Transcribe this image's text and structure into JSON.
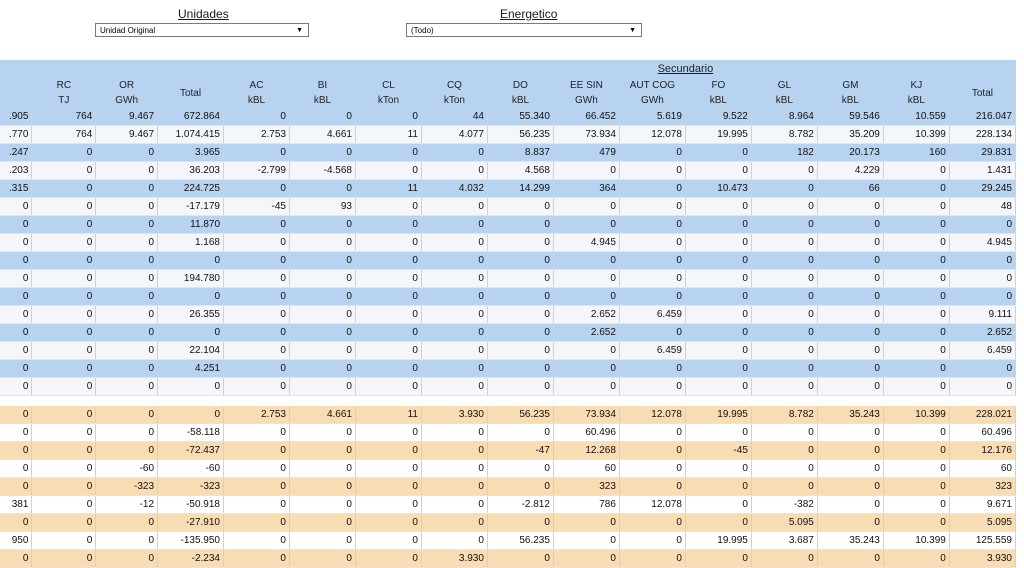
{
  "filters": {
    "unidades": {
      "label": "Unidades",
      "value": "Unidad Original"
    },
    "energetico": {
      "label": "Energetico",
      "value": "(Todo)"
    }
  },
  "table": {
    "group_header": "Secundario",
    "columns": [
      {
        "name": "",
        "unit": ""
      },
      {
        "name": "RC",
        "unit": "TJ"
      },
      {
        "name": "OR",
        "unit": "GWh"
      },
      {
        "name": "Total",
        "unit": ""
      },
      {
        "name": "AC",
        "unit": "kBL"
      },
      {
        "name": "BI",
        "unit": "kBL"
      },
      {
        "name": "CL",
        "unit": "kTon"
      },
      {
        "name": "CQ",
        "unit": "kTon"
      },
      {
        "name": "DO",
        "unit": "kBL"
      },
      {
        "name": "EE SIN",
        "unit": "GWh"
      },
      {
        "name": "AUT COG",
        "unit": "GWh"
      },
      {
        "name": "FO",
        "unit": "kBL"
      },
      {
        "name": "GL",
        "unit": "kBL"
      },
      {
        "name": "GM",
        "unit": "kBL"
      },
      {
        "name": "KJ",
        "unit": "kBL"
      },
      {
        "name": "Total",
        "unit": ""
      }
    ],
    "rows_top": [
      [
        ".905",
        "764",
        "9.467",
        "672.864",
        "0",
        "0",
        "0",
        "44",
        "55.340",
        "66.452",
        "5.619",
        "9.522",
        "8.964",
        "59.546",
        "10.559",
        "216.047"
      ],
      [
        ".770",
        "764",
        "9.467",
        "1.074.415",
        "2.753",
        "4.661",
        "11",
        "4.077",
        "56.235",
        "73.934",
        "12.078",
        "19.995",
        "8.782",
        "35.209",
        "10.399",
        "228.134"
      ],
      [
        ".247",
        "0",
        "0",
        "3.965",
        "0",
        "0",
        "0",
        "0",
        "8.837",
        "479",
        "0",
        "0",
        "182",
        "20.173",
        "160",
        "29.831"
      ],
      [
        ".203",
        "0",
        "0",
        "36.203",
        "-2.799",
        "-4.568",
        "0",
        "0",
        "4.568",
        "0",
        "0",
        "0",
        "0",
        "4.229",
        "0",
        "1.431"
      ],
      [
        ".315",
        "0",
        "0",
        "224.725",
        "0",
        "0",
        "11",
        "4.032",
        "14.299",
        "364",
        "0",
        "10.473",
        "0",
        "66",
        "0",
        "29.245"
      ],
      [
        "0",
        "0",
        "0",
        "-17.179",
        "-45",
        "93",
        "0",
        "0",
        "0",
        "0",
        "0",
        "0",
        "0",
        "0",
        "0",
        "48"
      ],
      [
        "0",
        "0",
        "0",
        "11.870",
        "0",
        "0",
        "0",
        "0",
        "0",
        "0",
        "0",
        "0",
        "0",
        "0",
        "0",
        "0"
      ],
      [
        "0",
        "0",
        "0",
        "1.168",
        "0",
        "0",
        "0",
        "0",
        "0",
        "4.945",
        "0",
        "0",
        "0",
        "0",
        "0",
        "4.945"
      ],
      [
        "0",
        "0",
        "0",
        "0",
        "0",
        "0",
        "0",
        "0",
        "0",
        "0",
        "0",
        "0",
        "0",
        "0",
        "0",
        "0"
      ],
      [
        "0",
        "0",
        "0",
        "194.780",
        "0",
        "0",
        "0",
        "0",
        "0",
        "0",
        "0",
        "0",
        "0",
        "0",
        "0",
        "0"
      ],
      [
        "0",
        "0",
        "0",
        "0",
        "0",
        "0",
        "0",
        "0",
        "0",
        "0",
        "0",
        "0",
        "0",
        "0",
        "0",
        "0"
      ],
      [
        "0",
        "0",
        "0",
        "26.355",
        "0",
        "0",
        "0",
        "0",
        "0",
        "2.652",
        "6.459",
        "0",
        "0",
        "0",
        "0",
        "9.111"
      ],
      [
        "0",
        "0",
        "0",
        "0",
        "0",
        "0",
        "0",
        "0",
        "0",
        "2.652",
        "0",
        "0",
        "0",
        "0",
        "0",
        "2.652"
      ],
      [
        "0",
        "0",
        "0",
        "22.104",
        "0",
        "0",
        "0",
        "0",
        "0",
        "0",
        "6.459",
        "0",
        "0",
        "0",
        "0",
        "6.459"
      ],
      [
        "0",
        "0",
        "0",
        "4.251",
        "0",
        "0",
        "0",
        "0",
        "0",
        "0",
        "0",
        "0",
        "0",
        "0",
        "0",
        "0"
      ],
      [
        "0",
        "0",
        "0",
        "0",
        "0",
        "0",
        "0",
        "0",
        "0",
        "0",
        "0",
        "0",
        "0",
        "0",
        "0",
        "0"
      ]
    ],
    "rows_bottom": [
      [
        "0",
        "0",
        "0",
        "0",
        "2.753",
        "4.661",
        "11",
        "3.930",
        "56.235",
        "73.934",
        "12.078",
        "19.995",
        "8.782",
        "35.243",
        "10.399",
        "228.021"
      ],
      [
        "0",
        "0",
        "0",
        "-58.118",
        "0",
        "0",
        "0",
        "0",
        "0",
        "60.496",
        "0",
        "0",
        "0",
        "0",
        "0",
        "60.496"
      ],
      [
        "0",
        "0",
        "0",
        "-72.437",
        "0",
        "0",
        "0",
        "0",
        "-47",
        "12.268",
        "0",
        "-45",
        "0",
        "0",
        "0",
        "12.176"
      ],
      [
        "0",
        "0",
        "-60",
        "-60",
        "0",
        "0",
        "0",
        "0",
        "0",
        "60",
        "0",
        "0",
        "0",
        "0",
        "0",
        "60"
      ],
      [
        "0",
        "0",
        "-323",
        "-323",
        "0",
        "0",
        "0",
        "0",
        "0",
        "323",
        "0",
        "0",
        "0",
        "0",
        "0",
        "323"
      ],
      [
        "381",
        "0",
        "-12",
        "-50.918",
        "0",
        "0",
        "0",
        "0",
        "-2.812",
        "786",
        "12.078",
        "0",
        "-382",
        "0",
        "0",
        "9.671"
      ],
      [
        "0",
        "0",
        "0",
        "-27.910",
        "0",
        "0",
        "0",
        "0",
        "0",
        "0",
        "0",
        "0",
        "5.095",
        "0",
        "0",
        "5.095"
      ],
      [
        "950",
        "0",
        "0",
        "-135.950",
        "0",
        "0",
        "0",
        "0",
        "56.235",
        "0",
        "0",
        "19.995",
        "3.687",
        "35.243",
        "10.399",
        "125.559"
      ],
      [
        "0",
        "0",
        "0",
        "-2.234",
        "0",
        "0",
        "0",
        "3.930",
        "0",
        "0",
        "0",
        "0",
        "0",
        "0",
        "0",
        "3.930"
      ]
    ]
  }
}
